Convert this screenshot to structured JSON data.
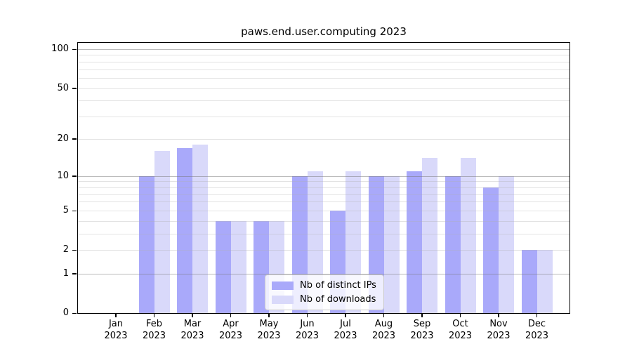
{
  "figure": {
    "background": "#ffffff",
    "frame_color": "#000000"
  },
  "chart_data": {
    "type": "bar",
    "title": "paws.end.user.computing 2023",
    "categories": [
      "Jan",
      "Feb",
      "Mar",
      "Apr",
      "May",
      "Jun",
      "Jul",
      "Aug",
      "Sep",
      "Oct",
      "Nov",
      "Dec"
    ],
    "x_tick_year": "2023",
    "series": [
      {
        "name": "Nb of distinct IPs",
        "color": "#a9a9fa",
        "values": [
          0,
          10,
          17,
          4,
          4,
          10,
          5,
          10,
          11,
          10,
          8,
          2
        ]
      },
      {
        "name": "Nb of downloads",
        "color": "#d9d9fa",
        "values": [
          0,
          16,
          18,
          4,
          4,
          11,
          11,
          10,
          14,
          14,
          10,
          2
        ]
      }
    ],
    "yticks": [
      0,
      1,
      2,
      5,
      10,
      20,
      50,
      100
    ],
    "minor_gridline_values": [
      3,
      4,
      6,
      7,
      8,
      9,
      30,
      40,
      60,
      70,
      80,
      90
    ],
    "major_gridline_values": [
      1,
      10,
      100
    ],
    "ylim": [
      0,
      100
    ],
    "yscale": "log1p",
    "grid": true,
    "legend_position": "lower center",
    "xlabel": "",
    "ylabel": ""
  }
}
